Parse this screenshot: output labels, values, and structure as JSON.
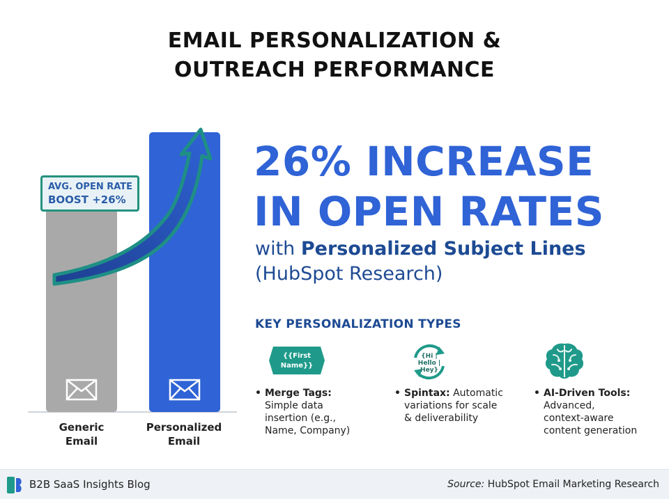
{
  "title": {
    "line1": "EMAIL PERSONALIZATION &",
    "line2": "OUTREACH PERFORMANCE"
  },
  "chart_data": {
    "type": "bar",
    "categories": [
      "Generic Email",
      "Personalized Email"
    ],
    "category_lines": [
      [
        "Generic",
        "Email"
      ],
      [
        "Personalized",
        "Email"
      ]
    ],
    "values": [
      100,
      126
    ],
    "colors": [
      "#a9a9a9",
      "#2f63d6"
    ],
    "bar_icon": "envelope-icon",
    "annotation": {
      "line1": "AVG. OPEN RATE",
      "line2": "BOOST +26%"
    },
    "arrow_color": "#1f8f86"
  },
  "headline": {
    "line1": "26% INCREASE",
    "line2": "IN OPEN RATES"
  },
  "subheadline": {
    "lead": "with ",
    "strong": "Personalized Subject Lines",
    "line2": "(HubSpot Research)"
  },
  "key_types": {
    "title": "KEY PERSONALIZATION TYPES",
    "items": [
      {
        "icon": "merge-tag-icon",
        "icon_text": [
          "{{First",
          "Name}}"
        ],
        "name": "Merge Tags:",
        "desc": "Simple data insertion (e.g., Name, Company)",
        "desc_lines": [
          "Simple data",
          "insertion (e.g.,",
          "Name, Company)"
        ]
      },
      {
        "icon": "spintax-cycle-icon",
        "icon_text": [
          "{Hi |",
          "Hello |",
          "Hey}"
        ],
        "name": "Spintax:",
        "desc_lines": [
          "variations for scale",
          "& deliverability"
        ],
        "desc_first": "Automatic"
      },
      {
        "icon": "ai-brain-icon",
        "name": "AI-Driven Tools:",
        "desc_lines": [
          "Advanced,",
          "context-aware",
          "content generation"
        ]
      }
    ]
  },
  "footer": {
    "brand": "B2B SaaS Insights Blog",
    "source_label": "Source:",
    "source": "HubSpot Email Marketing Research"
  },
  "accent": "#2f63d6",
  "teal": "#1f9a8a"
}
